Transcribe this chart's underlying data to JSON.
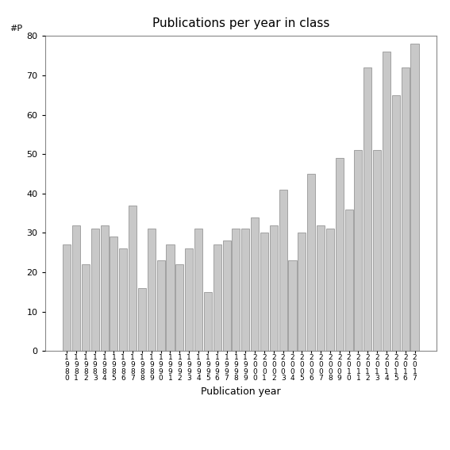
{
  "years": [
    "1980",
    "1981",
    "1982",
    "1983",
    "1984",
    "1985",
    "1986",
    "1987",
    "1988",
    "1989",
    "1990",
    "1991",
    "1992",
    "1993",
    "1994",
    "1995",
    "1996",
    "1997",
    "1998",
    "1999",
    "2000",
    "2001",
    "2002",
    "2003",
    "2004",
    "2005",
    "2006",
    "2007",
    "2008",
    "2009",
    "2010",
    "2011",
    "2012",
    "2013",
    "2014",
    "2015",
    "2016",
    "2017"
  ],
  "values": [
    27,
    32,
    22,
    31,
    32,
    29,
    26,
    37,
    16,
    31,
    23,
    27,
    22,
    26,
    31,
    15,
    27,
    28,
    31,
    31,
    34,
    30,
    32,
    41,
    23,
    30,
    45,
    32,
    31,
    49,
    36,
    51,
    72,
    51,
    76,
    65,
    72,
    78
  ],
  "title": "Publications per year in class",
  "xlabel": "Publication year",
  "ylabel_label": "#P",
  "bar_color": "#c8c8c8",
  "bar_edge_color": "#888888",
  "ylim": [
    0,
    80
  ],
  "yticks": [
    0,
    10,
    20,
    30,
    40,
    50,
    60,
    70,
    80
  ],
  "background_color": "#ffffff",
  "title_fontsize": 11,
  "axis_fontsize": 9,
  "tick_fontsize": 8
}
